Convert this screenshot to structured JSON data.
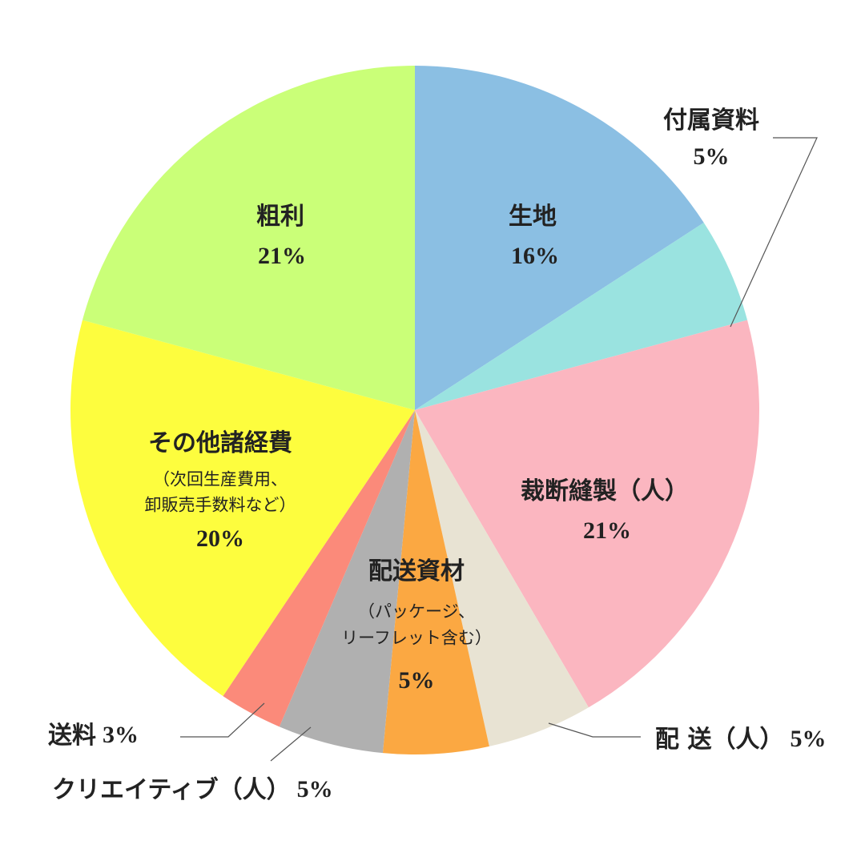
{
  "chart_data": {
    "type": "pie",
    "categories": [
      "生地",
      "付属資料",
      "裁断縫製（人）",
      "配 送（人）",
      "配送資材",
      "クリエイティブ（人）",
      "送料",
      "その他諸経費",
      "粗利"
    ],
    "values": [
      16,
      5,
      21,
      5,
      5,
      5,
      3,
      20,
      21
    ],
    "value_labels": [
      "16%",
      "5%",
      "21%",
      "5%",
      "5%",
      "5%",
      "3%",
      "20%",
      "21%"
    ],
    "colors": [
      "#8bbfe3",
      "#9ae3e0",
      "#fbb6c0",
      "#e8e3d3",
      "#fba842",
      "#b0b0b0",
      "#fb8a7a",
      "#fdfd3e",
      "#caff78"
    ],
    "notes": [
      null,
      null,
      null,
      null,
      [
        "（パッケージ、",
        "リーフレット含む）"
      ],
      null,
      null,
      [
        "（次回生産費用、",
        "卸販売手数料など）"
      ],
      null
    ]
  }
}
